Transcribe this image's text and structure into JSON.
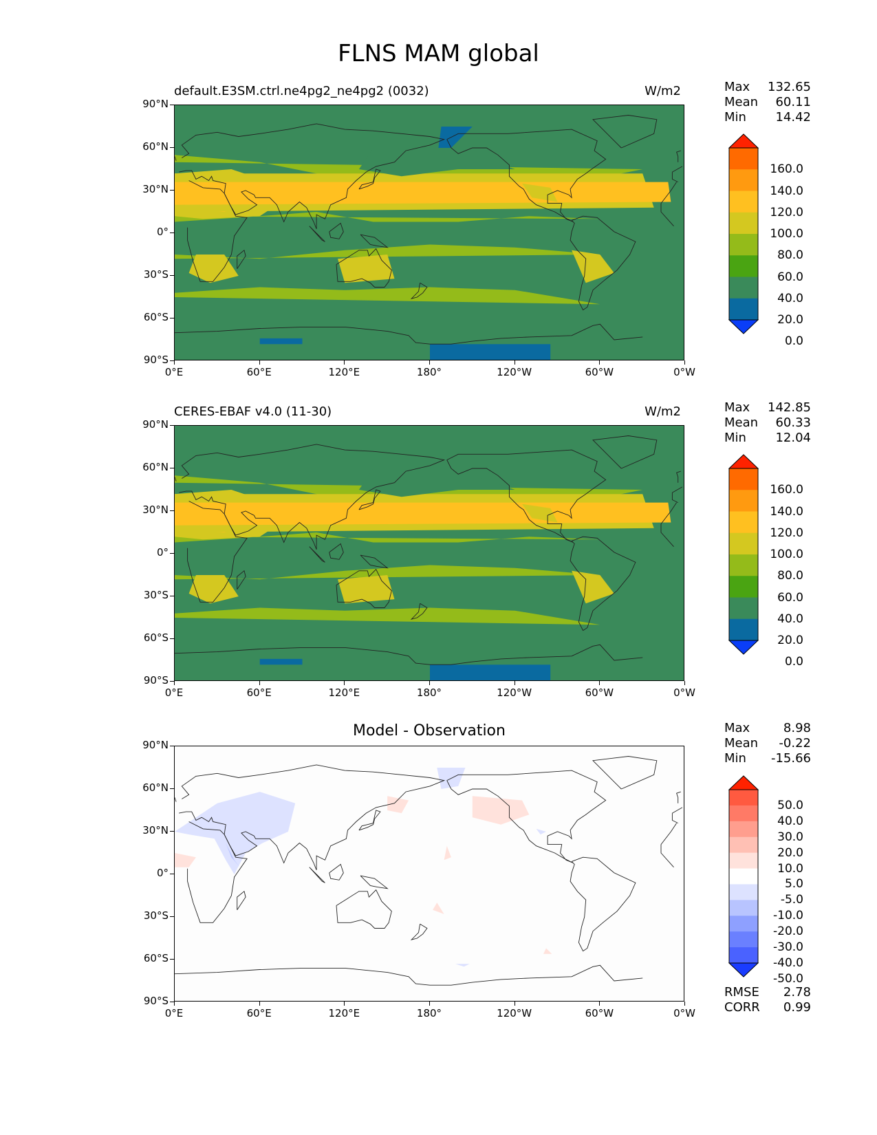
{
  "title": "FLNS MAM global",
  "panels": [
    {
      "title_left": "default.E3SM.ctrl.ne4pg2_ne4pg2 (0032)",
      "title_right": "W/m2",
      "stats": {
        "max_label": "Max",
        "max": "132.65",
        "mean_label": "Mean",
        "mean": "60.11",
        "min_label": "Min",
        "min": "14.42"
      }
    },
    {
      "title_left": "CERES-EBAF v4.0 (11-30)",
      "title_right": "W/m2",
      "stats": {
        "max_label": "Max",
        "max": "142.85",
        "mean_label": "Mean",
        "mean": "60.33",
        "min_label": "Min",
        "min": "12.04"
      }
    },
    {
      "title_center": "Model - Observation",
      "stats": {
        "max_label": "Max",
        "max": "8.98",
        "mean_label": "Mean",
        "mean": "-0.22",
        "min_label": "Min",
        "min": "-15.66"
      },
      "metrics": {
        "rmse_label": "RMSE",
        "rmse": "2.78",
        "corr_label": "CORR",
        "corr": "0.99"
      }
    }
  ],
  "axes": {
    "lat_ticks": [
      "90°N",
      "60°N",
      "30°N",
      "0°",
      "30°S",
      "60°S",
      "90°S"
    ],
    "lon_ticks": [
      "0°E",
      "60°E",
      "120°E",
      "180°",
      "120°W",
      "60°W",
      "0°W"
    ]
  },
  "colorbars": {
    "field": {
      "labels": [
        "160.0",
        "140.0",
        "120.0",
        "100.0",
        "80.0",
        "60.0",
        "40.0",
        "20.0",
        "0.0"
      ],
      "colors": [
        "#ff2200",
        "#ff6a00",
        "#ff9a10",
        "#ffc020",
        "#d4c820",
        "#94bb1a",
        "#4aa412",
        "#3a8a5a",
        "#0a6aa0",
        "#0a3ef8"
      ]
    },
    "diff": {
      "labels": [
        "50.0",
        "40.0",
        "30.0",
        "20.0",
        "10.0",
        "5.0",
        "-5.0",
        "-10.0",
        "-20.0",
        "-30.0",
        "-40.0",
        "-50.0"
      ],
      "colors": [
        "#ff2200",
        "#ff5a40",
        "#ff7a66",
        "#ff9e8e",
        "#ffc0b4",
        "#ffe2dc",
        "#ffffff",
        "#dde2ff",
        "#b8c4ff",
        "#8ea0ff",
        "#6a80ff",
        "#4a62ff",
        "#1a3cff"
      ]
    }
  },
  "chart_data": [
    {
      "type": "heatmap",
      "title": "default.E3SM.ctrl.ne4pg2_ne4pg2 (0032)",
      "units": "W/m2",
      "xlabel": "",
      "ylabel": "",
      "xlim": [
        0,
        360
      ],
      "ylim": [
        -90,
        90
      ],
      "levels": [
        0,
        20,
        40,
        60,
        80,
        100,
        120,
        140,
        160
      ],
      "max": 132.65,
      "mean": 60.11,
      "min": 14.42
    },
    {
      "type": "heatmap",
      "title": "CERES-EBAF v4.0 (11-30)",
      "units": "W/m2",
      "xlabel": "",
      "ylabel": "",
      "xlim": [
        0,
        360
      ],
      "ylim": [
        -90,
        90
      ],
      "levels": [
        0,
        20,
        40,
        60,
        80,
        100,
        120,
        140,
        160
      ],
      "max": 142.85,
      "mean": 60.33,
      "min": 12.04
    },
    {
      "type": "heatmap",
      "title": "Model - Observation",
      "xlabel": "",
      "ylabel": "",
      "xlim": [
        0,
        360
      ],
      "ylim": [
        -90,
        90
      ],
      "levels": [
        -50,
        -40,
        -30,
        -20,
        -10,
        -5,
        5,
        10,
        20,
        30,
        40,
        50
      ],
      "max": 8.98,
      "mean": -0.22,
      "min": -15.66,
      "rmse": 2.78,
      "corr": 0.99
    }
  ]
}
